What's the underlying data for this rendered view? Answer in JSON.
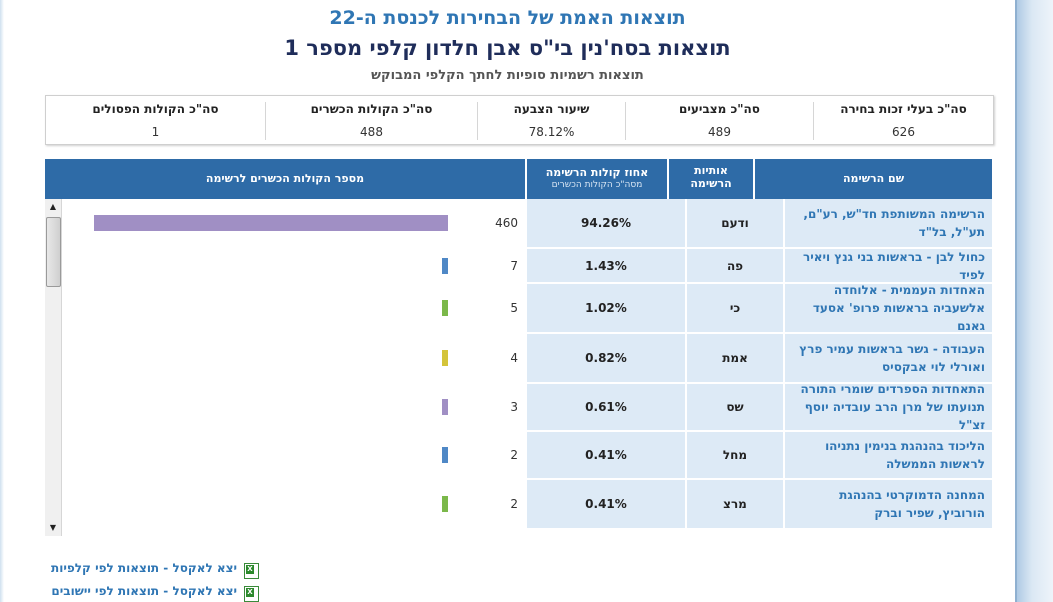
{
  "header": {
    "title": "תוצאות האמת של הבחירות לכנסת ה-22",
    "subtitle": "תוצאות בסח'נין בי\"ס אבן חלדון קלפי מספר 1",
    "note": "תוצאות רשמיות סופיות לחתך הקלפי המבוקש"
  },
  "summary": [
    {
      "label": "סה\"כ בעלי זכות בחירה",
      "value": "626"
    },
    {
      "label": "סה\"כ מצביעים",
      "value": "489"
    },
    {
      "label": "שיעור הצבעה",
      "value": "78.12%"
    },
    {
      "label": "סה\"כ הקולות הכשרים",
      "value": "488"
    },
    {
      "label": "סה\"כ הקולות הפסולים",
      "value": "1"
    }
  ],
  "table": {
    "headers": {
      "name": "שם הרשימה",
      "letters_line1": "אותיות",
      "letters_line2": "הרשימה",
      "percent": "אחוז קולות הרשימה",
      "percent_sub": "מסה\"כ הקולות הכשרים",
      "votes": "מספר הקולות הכשרים לרשימה"
    },
    "rows": [
      {
        "name": "הרשימה המשותפת חד\"ש, רע\"ם, תע\"ל, בל\"ד",
        "letters": "ודעם",
        "percent": "94.26%",
        "votes": "460",
        "votes_num": 460,
        "color": "#a08fc4"
      },
      {
        "name": "כחול לבן - בראשות בני גנץ ויאיר לפיד",
        "letters": "פה",
        "percent": "1.43%",
        "votes": "7",
        "votes_num": 7,
        "color": "#4f88c6"
      },
      {
        "name": "האחדות העממית - אלוחדה אלשעביה בראשות פרופ' אסעד גאנם",
        "letters": "כי",
        "percent": "1.02%",
        "votes": "5",
        "votes_num": 5,
        "color": "#7bb84a"
      },
      {
        "name": "העבודה - גשר בראשות עמיר פרץ ואורלי לוי אבקסיס",
        "letters": "אמת",
        "percent": "0.82%",
        "votes": "4",
        "votes_num": 4,
        "color": "#d4c43a"
      },
      {
        "name": "התאחדות הספרדים שומרי התורה תנועתו של מרן הרב עובדיה יוסף זצ\"ל",
        "letters": "שס",
        "percent": "0.61%",
        "votes": "3",
        "votes_num": 3,
        "color": "#a08fc4"
      },
      {
        "name": "הליכוד בהנהגת בנימין נתניהו לראשות הממשלה",
        "letters": "מחל",
        "percent": "0.41%",
        "votes": "2",
        "votes_num": 2,
        "color": "#4f88c6"
      },
      {
        "name": "המחנה הדמוקרטי בהנהגת הורוביץ, שפיר וברק",
        "letters": "מרצ",
        "percent": "0.41%",
        "votes": "2",
        "votes_num": 2,
        "color": "#7bb84a"
      }
    ]
  },
  "links": [
    {
      "label": "יצא לאקסל - תוצאות לפי קלפיות",
      "icon": "excel-icon"
    },
    {
      "label": "יצא לאקסל - תוצאות לפי יישובים",
      "icon": "excel-icon"
    }
  ]
}
